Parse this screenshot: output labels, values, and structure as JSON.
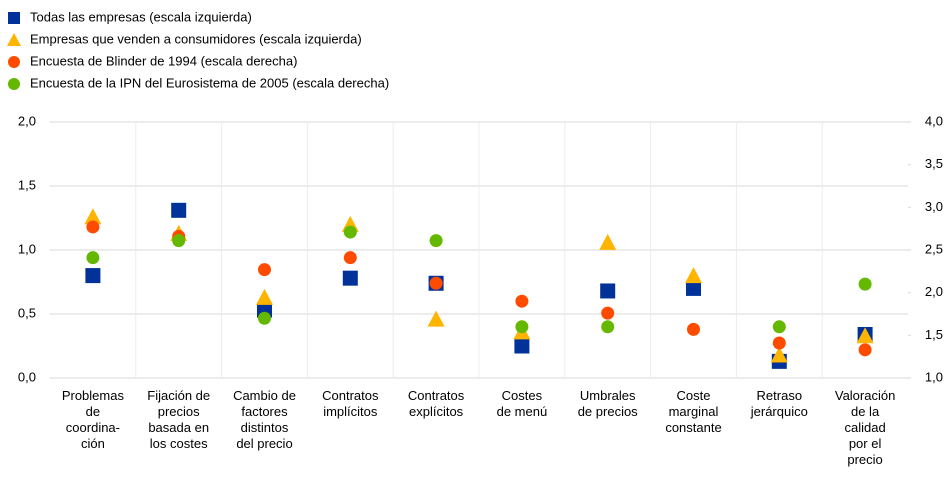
{
  "chart_data": {
    "type": "scatter",
    "categories": [
      "Problemas\nde\ncoordina-\nción",
      "Fijación de\nprecios\nbasada en\nlos costes",
      "Cambio de\nfactores\ndistintos\ndel precio",
      "Contratos\nimplícitos",
      "Contratos\nexplícitos",
      "Costes\nde menú",
      "Umbrales\nde precios",
      "Coste\nmarginal\nconstante",
      "Retraso\njerárquico",
      "Valoración\nde la\ncalidad\npor el\nprecio"
    ],
    "series": [
      {
        "name": "Todas las empresas (escala izquierda)",
        "color": "#003299",
        "marker": "square",
        "values": [
          0.8,
          1.31,
          0.53,
          0.78,
          0.74,
          0.25,
          0.68,
          0.7,
          0.13,
          0.34
        ]
      },
      {
        "name": "Empresas que venden a consumidores (escala izquierda)",
        "color": "#ffb400",
        "marker": "triangle",
        "values": [
          1.26,
          1.13,
          0.63,
          1.2,
          0.46,
          0.36,
          1.06,
          0.8,
          0.18,
          0.33
        ]
      },
      {
        "name": "Encuesta de Blinder de 1994 (escala derecha)",
        "color": "#ff4b00",
        "marker": "circle",
        "axis": "y2",
        "values": [
          2.77,
          2.66,
          2.27,
          2.41,
          2.11,
          1.9,
          1.76,
          1.57,
          1.41,
          1.33
        ]
      },
      {
        "name": "Encuesta de la IPN del Eurosistema de 2005 (escala derecha)",
        "color": "#65b800",
        "marker": "circle",
        "axis": "y2",
        "values": [
          2.41,
          2.61,
          1.7,
          2.71,
          2.61,
          1.6,
          1.6,
          null,
          1.6,
          2.1
        ]
      }
    ],
    "ylim": [
      0,
      2
    ],
    "yticks": [
      {
        "value": 0,
        "label": "0,0"
      },
      {
        "value": 0.5,
        "label": "0,5"
      },
      {
        "value": 1,
        "label": "1,0"
      },
      {
        "value": 1.5,
        "label": "1,5"
      },
      {
        "value": 2,
        "label": "2,0"
      }
    ],
    "y2lim": [
      1,
      4
    ],
    "y2ticks": [
      {
        "value": 1,
        "label": "1,0"
      },
      {
        "value": 1.5,
        "label": "1,5"
      },
      {
        "value": 2,
        "label": "2,0"
      },
      {
        "value": 2.5,
        "label": "2,5"
      },
      {
        "value": 3,
        "label": "3,0"
      },
      {
        "value": 3.5,
        "label": "3,5"
      },
      {
        "value": 4,
        "label": "4,0"
      }
    ],
    "grid": true,
    "legend": "top-left"
  }
}
